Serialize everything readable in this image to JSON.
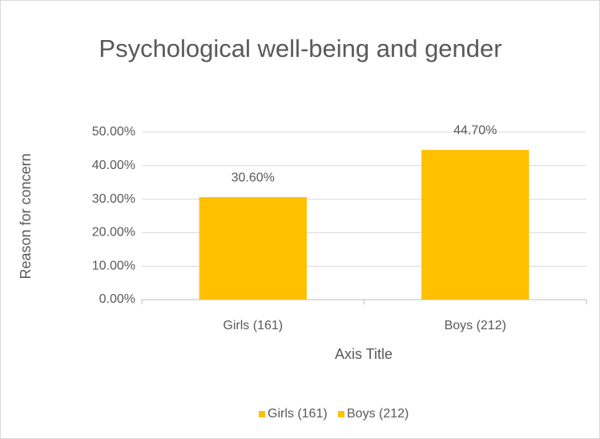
{
  "chart_data": {
    "type": "bar",
    "title": "Psychological well-being and gender",
    "y_label": "Reason for concern",
    "x_label": "Axis Title",
    "categories": [
      "Girls (161)",
      "Boys (212)"
    ],
    "values": [
      30.6,
      44.7
    ],
    "value_labels": [
      "30.60%",
      "44.70%"
    ],
    "color": "#ffc000",
    "ylim": [
      0,
      50
    ],
    "yticks": [
      {
        "value": 0,
        "label": "0.00%"
      },
      {
        "value": 10,
        "label": "10.00%"
      },
      {
        "value": 20,
        "label": "20.00%"
      },
      {
        "value": 30,
        "label": "30.00%"
      },
      {
        "value": 40,
        "label": "40.00%"
      },
      {
        "value": 50,
        "label": "50.00%"
      }
    ],
    "grid": true,
    "legend": "bottom"
  }
}
